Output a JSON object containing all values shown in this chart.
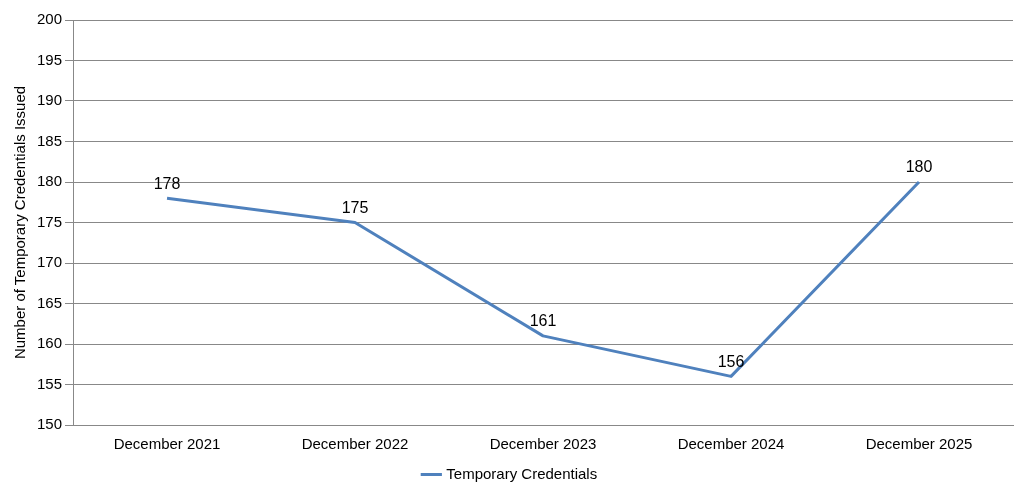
{
  "chart_data": {
    "type": "line",
    "ylabel": "Number of Temporary Credentials Issued",
    "categories": [
      "December 2021",
      "December 2022",
      "December 2023",
      "December 2024",
      "December 2025"
    ],
    "series": [
      {
        "name": "Temporary Credentials",
        "color": "#4f81bd",
        "values": [
          178,
          175,
          161,
          156,
          180
        ]
      }
    ],
    "ylim": [
      150,
      200
    ],
    "yticks": [
      150,
      155,
      160,
      165,
      170,
      175,
      180,
      185,
      190,
      195,
      200
    ],
    "grid": "y",
    "legend": "bottom",
    "marker": "none",
    "line_style": "solid",
    "data_labels": true
  }
}
